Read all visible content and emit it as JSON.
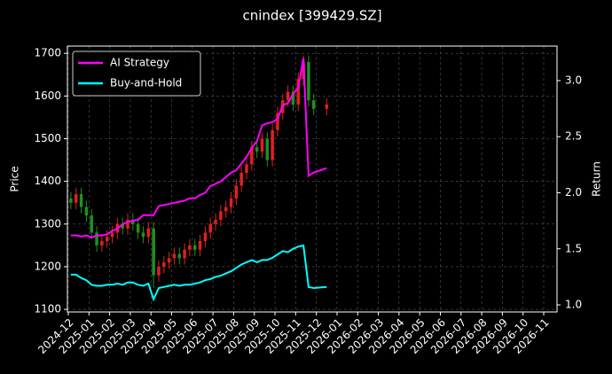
{
  "chart_data": {
    "type": "candlestick",
    "title": "cnindex [399429.SZ]",
    "ylabel": "Price",
    "y2label": "Return",
    "x": [
      "2024-12",
      "2024-12",
      "2024-12",
      "2024-12",
      "2025-01",
      "2025-01",
      "2025-01",
      "2025-01",
      "2025-02",
      "2025-02",
      "2025-02",
      "2025-02",
      "2025-03",
      "2025-03",
      "2025-03",
      "2025-03",
      "2025-04",
      "2025-04",
      "2025-04",
      "2025-04",
      "2025-05",
      "2025-05",
      "2025-05",
      "2025-05",
      "2025-06",
      "2025-06",
      "2025-06",
      "2025-06",
      "2025-07",
      "2025-07",
      "2025-07",
      "2025-07",
      "2025-08",
      "2025-08",
      "2025-08",
      "2025-08",
      "2025-09",
      "2025-09",
      "2025-09",
      "2025-09",
      "2025-10",
      "2025-10",
      "2025-10",
      "2025-10",
      "2025-11",
      "2025-11",
      "2025-11",
      "2025-11",
      "2025-12"
    ],
    "open": [
      1360,
      1350,
      1370,
      1340,
      1320,
      1280,
      1250,
      1260,
      1270,
      1280,
      1300,
      1290,
      1310,
      1300,
      1280,
      1270,
      1290,
      1180,
      1200,
      1210,
      1220,
      1230,
      1220,
      1240,
      1250,
      1240,
      1260,
      1280,
      1300,
      1310,
      1330,
      1340,
      1360,
      1390,
      1420,
      1440,
      1480,
      1470,
      1500,
      1450,
      1520,
      1560,
      1590,
      1610,
      1580,
      1640,
      1680,
      1590,
      1570
    ],
    "high": [
      1375,
      1385,
      1385,
      1355,
      1335,
      1295,
      1275,
      1285,
      1295,
      1315,
      1315,
      1325,
      1325,
      1315,
      1295,
      1305,
      1305,
      1215,
      1225,
      1235,
      1245,
      1245,
      1255,
      1265,
      1265,
      1275,
      1295,
      1315,
      1325,
      1345,
      1355,
      1375,
      1405,
      1435,
      1455,
      1495,
      1495,
      1515,
      1515,
      1535,
      1575,
      1605,
      1625,
      1625,
      1655,
      1695,
      1695,
      1605,
      1595
    ],
    "low": [
      1335,
      1335,
      1325,
      1305,
      1265,
      1235,
      1235,
      1245,
      1255,
      1265,
      1275,
      1275,
      1285,
      1265,
      1255,
      1255,
      1150,
      1165,
      1185,
      1195,
      1205,
      1205,
      1205,
      1225,
      1225,
      1225,
      1245,
      1265,
      1285,
      1295,
      1315,
      1325,
      1345,
      1375,
      1405,
      1425,
      1455,
      1455,
      1435,
      1435,
      1505,
      1545,
      1575,
      1565,
      1565,
      1625,
      1575,
      1555,
      1555
    ],
    "close": [
      1350,
      1370,
      1340,
      1320,
      1280,
      1250,
      1260,
      1270,
      1280,
      1300,
      1290,
      1310,
      1300,
      1280,
      1270,
      1290,
      1180,
      1200,
      1210,
      1220,
      1230,
      1220,
      1240,
      1250,
      1240,
      1260,
      1280,
      1300,
      1310,
      1330,
      1340,
      1360,
      1390,
      1420,
      1440,
      1480,
      1470,
      1500,
      1450,
      1520,
      1560,
      1590,
      1610,
      1580,
      1640,
      1680,
      1590,
      1570,
      1580
    ],
    "up_color": "#e02020",
    "down_color": "#209020",
    "series": [
      {
        "name": "AI Strategy",
        "color": "#ff00ff",
        "axis": "y2",
        "values": [
          1.62,
          1.62,
          1.61,
          1.62,
          1.6,
          1.62,
          1.62,
          1.63,
          1.66,
          1.68,
          1.72,
          1.74,
          1.75,
          1.76,
          1.8,
          1.8,
          1.8,
          1.88,
          1.89,
          1.9,
          1.91,
          1.92,
          1.93,
          1.95,
          1.95,
          1.98,
          2.0,
          2.06,
          2.08,
          2.1,
          2.14,
          2.18,
          2.2,
          2.26,
          2.32,
          2.4,
          2.46,
          2.6,
          2.62,
          2.63,
          2.66,
          2.78,
          2.8,
          2.88,
          2.94,
          3.2,
          2.15,
          2.18,
          2.22
        ]
      },
      {
        "name": "Buy-and-Hold",
        "color": "#00ffff",
        "axis": "y2",
        "values": [
          1.27,
          1.27,
          1.24,
          1.22,
          1.18,
          1.17,
          1.17,
          1.18,
          1.18,
          1.19,
          1.18,
          1.2,
          1.2,
          1.18,
          1.17,
          1.19,
          1.05,
          1.15,
          1.16,
          1.17,
          1.18,
          1.17,
          1.18,
          1.18,
          1.19,
          1.2,
          1.22,
          1.23,
          1.25,
          1.26,
          1.28,
          1.3,
          1.33,
          1.36,
          1.38,
          1.4,
          1.38,
          1.4,
          1.4,
          1.42,
          1.45,
          1.48,
          1.47,
          1.5,
          1.52,
          1.53,
          1.16,
          1.15,
          1.16
        ]
      }
    ],
    "xticks": [
      "2024-12",
      "2025-01",
      "2025-02",
      "2025-03",
      "2025-04",
      "2025-05",
      "2025-06",
      "2025-07",
      "2025-08",
      "2025-09",
      "2025-10",
      "2025-11",
      "2025-12",
      "2026-01",
      "2026-02",
      "2026-03",
      "2026-04",
      "2026-05",
      "2026-06",
      "2026-07",
      "2026-08",
      "2026-09",
      "2026-10",
      "2026-11"
    ],
    "ylim": [
      1094,
      1717
    ],
    "yticks": [
      1100,
      1200,
      1300,
      1400,
      1500,
      1600,
      1700
    ],
    "y2lim": [
      0.937,
      3.308
    ],
    "y2ticks": [
      {
        "value": 1,
        "label": "1.0"
      },
      1.5,
      {
        "value": 2,
        "label": "2.0"
      },
      2.5,
      {
        "value": 3,
        "label": "3.0"
      }
    ],
    "grid": true,
    "legend": "upper left"
  }
}
